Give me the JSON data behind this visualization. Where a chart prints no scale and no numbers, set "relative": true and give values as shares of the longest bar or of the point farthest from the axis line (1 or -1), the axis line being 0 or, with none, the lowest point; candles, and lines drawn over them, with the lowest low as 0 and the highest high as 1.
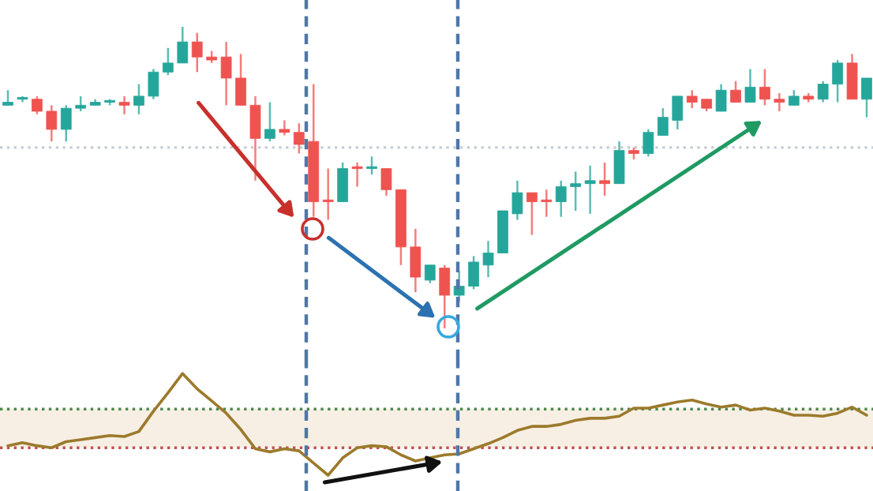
{
  "chart_data": [
    {
      "type": "candlestick",
      "relative": true,
      "categories": [
        null,
        null,
        null,
        null,
        null,
        null,
        null,
        null,
        null,
        null,
        null,
        null,
        null,
        null,
        null,
        null,
        null,
        null,
        null,
        null,
        null,
        null,
        null,
        null,
        null,
        null,
        null,
        null,
        null,
        null,
        null,
        null,
        null,
        null,
        null,
        null,
        null,
        null,
        null,
        null,
        null,
        null,
        null,
        null,
        null,
        null,
        null,
        null,
        null,
        null,
        null,
        null,
        null,
        null,
        null,
        null,
        null,
        null,
        null,
        null
      ],
      "ohlc": [
        [
          0.74,
          0.79,
          0.74,
          0.75
        ],
        [
          0.76,
          0.77,
          0.75,
          0.76
        ],
        [
          0.76,
          0.77,
          0.71,
          0.72
        ],
        [
          0.72,
          0.74,
          0.62,
          0.66
        ],
        [
          0.66,
          0.74,
          0.62,
          0.73
        ],
        [
          0.73,
          0.77,
          0.72,
          0.74
        ],
        [
          0.74,
          0.76,
          0.74,
          0.75
        ],
        [
          0.75,
          0.76,
          0.74,
          0.75
        ],
        [
          0.75,
          0.77,
          0.71,
          0.74
        ],
        [
          0.74,
          0.81,
          0.71,
          0.77
        ],
        [
          0.77,
          0.86,
          0.76,
          0.85
        ],
        [
          0.85,
          0.93,
          0.84,
          0.88
        ],
        [
          0.88,
          1.0,
          0.88,
          0.95
        ],
        [
          0.95,
          0.98,
          0.85,
          0.9
        ],
        [
          0.9,
          0.92,
          0.88,
          0.89
        ],
        [
          0.9,
          0.95,
          0.74,
          0.83
        ],
        [
          0.83,
          0.91,
          0.74,
          0.74
        ],
        [
          0.74,
          0.77,
          0.49,
          0.63
        ],
        [
          0.63,
          0.75,
          0.62,
          0.66
        ],
        [
          0.66,
          0.69,
          0.64,
          0.65
        ],
        [
          0.65,
          0.68,
          0.58,
          0.61
        ],
        [
          0.62,
          0.81,
          0.37,
          0.42
        ],
        [
          0.42,
          0.53,
          0.36,
          0.42
        ],
        [
          0.42,
          0.55,
          0.42,
          0.53
        ],
        [
          0.53,
          0.55,
          0.47,
          0.53
        ],
        [
          0.53,
          0.57,
          0.51,
          0.53
        ],
        [
          0.53,
          0.53,
          0.44,
          0.46
        ],
        [
          0.46,
          0.46,
          0.21,
          0.27
        ],
        [
          0.27,
          0.33,
          0.12,
          0.17
        ],
        [
          0.16,
          0.21,
          0.15,
          0.21
        ],
        [
          0.2,
          0.21,
          0.0,
          0.11
        ],
        [
          0.11,
          0.19,
          0.09,
          0.14
        ],
        [
          0.14,
          0.24,
          0.13,
          0.22
        ],
        [
          0.21,
          0.29,
          0.17,
          0.25
        ],
        [
          0.25,
          0.39,
          0.25,
          0.39
        ],
        [
          0.38,
          0.49,
          0.36,
          0.45
        ],
        [
          0.45,
          0.45,
          0.31,
          0.42
        ],
        [
          0.42,
          0.46,
          0.37,
          0.42
        ],
        [
          0.42,
          0.49,
          0.37,
          0.47
        ],
        [
          0.47,
          0.52,
          0.39,
          0.48
        ],
        [
          0.48,
          0.54,
          0.38,
          0.49
        ],
        [
          0.49,
          0.55,
          0.44,
          0.48
        ],
        [
          0.48,
          0.62,
          0.48,
          0.59
        ],
        [
          0.59,
          0.6,
          0.56,
          0.58
        ],
        [
          0.58,
          0.66,
          0.57,
          0.65
        ],
        [
          0.64,
          0.73,
          0.64,
          0.7
        ],
        [
          0.69,
          0.77,
          0.66,
          0.77
        ],
        [
          0.77,
          0.79,
          0.73,
          0.75
        ],
        [
          0.76,
          0.76,
          0.72,
          0.73
        ],
        [
          0.72,
          0.81,
          0.72,
          0.79
        ],
        [
          0.79,
          0.82,
          0.75,
          0.75
        ],
        [
          0.75,
          0.86,
          0.75,
          0.8
        ],
        [
          0.8,
          0.86,
          0.74,
          0.76
        ],
        [
          0.76,
          0.78,
          0.72,
          0.75
        ],
        [
          0.74,
          0.79,
          0.74,
          0.77
        ],
        [
          0.77,
          0.78,
          0.75,
          0.76
        ],
        [
          0.76,
          0.82,
          0.75,
          0.81
        ],
        [
          0.81,
          0.89,
          0.75,
          0.88
        ],
        [
          0.88,
          0.91,
          0.76,
          0.76
        ],
        [
          0.76,
          0.83,
          0.7,
          0.83
        ]
      ],
      "colors": [
        "#26a69a",
        "#26a69a",
        "#ef5350",
        "#ef5350",
        "#26a69a",
        "#26a69a",
        "#26a69a",
        "#26a69a",
        "#ef5350",
        "#26a69a",
        "#26a69a",
        "#26a69a",
        "#26a69a",
        "#ef5350",
        "#ef5350",
        "#ef5350",
        "#ef5350",
        "#ef5350",
        "#26a69a",
        "#ef5350",
        "#ef5350",
        "#ef5350",
        "#ef5350",
        "#26a69a",
        "#ef5350",
        "#26a69a",
        "#ef5350",
        "#ef5350",
        "#ef5350",
        "#26a69a",
        "#ef5350",
        "#26a69a",
        "#26a69a",
        "#26a69a",
        "#26a69a",
        "#26a69a",
        "#ef5350",
        "#ef5350",
        "#26a69a",
        "#26a69a",
        "#26a69a",
        "#ef5350",
        "#26a69a",
        "#ef5350",
        "#26a69a",
        "#26a69a",
        "#26a69a",
        "#ef5350",
        "#ef5350",
        "#26a69a",
        "#ef5350",
        "#26a69a",
        "#ef5350",
        "#ef5350",
        "#26a69a",
        "#ef5350",
        "#26a69a",
        "#26a69a",
        "#ef5350",
        "#26a69a"
      ],
      "ref_lines": [
        {
          "axis": "y",
          "value": 0.6,
          "color": "#c8cdd2",
          "line_style": "dotted"
        }
      ]
    },
    {
      "type": "line",
      "relative": true,
      "series": [
        {
          "color": "#9c7a2c",
          "values": [
            0.29,
            0.32,
            0.29,
            0.27,
            0.33,
            0.35,
            0.37,
            0.39,
            0.38,
            0.43,
            0.63,
            0.81,
            1.0,
            0.85,
            0.73,
            0.61,
            0.45,
            0.26,
            0.23,
            0.26,
            0.24,
            0.12,
            0.0,
            0.17,
            0.27,
            0.29,
            0.28,
            0.2,
            0.14,
            0.17,
            0.2,
            0.21,
            0.26,
            0.31,
            0.37,
            0.44,
            0.48,
            0.48,
            0.5,
            0.54,
            0.56,
            0.56,
            0.58,
            0.66,
            0.66,
            0.69,
            0.72,
            0.74,
            0.7,
            0.67,
            0.69,
            0.64,
            0.66,
            0.63,
            0.59,
            0.59,
            0.58,
            0.61,
            0.67,
            0.59
          ]
        }
      ],
      "categories": [
        null,
        null,
        null,
        null,
        null,
        null,
        null,
        null,
        null,
        null,
        null,
        null,
        null,
        null,
        null,
        null,
        null,
        null,
        null,
        null,
        null,
        null,
        null,
        null,
        null,
        null,
        null,
        null,
        null,
        null,
        null,
        null,
        null,
        null,
        null,
        null,
        null,
        null,
        null,
        null,
        null,
        null,
        null,
        null,
        null,
        null,
        null,
        null,
        null,
        null,
        null,
        null,
        null,
        null,
        null,
        null,
        null,
        null,
        null,
        null
      ],
      "ref_lines": [
        {
          "axis": "y",
          "value": 0.65,
          "color": "#4a8a4a",
          "line_style": "dotted"
        },
        {
          "axis": "y",
          "value": 0.27,
          "color": "#c05050",
          "line_style": "dotted"
        }
      ],
      "bands": [
        {
          "axis": "y",
          "from": 0.27,
          "to": 0.65,
          "color": "#f7efe4"
        }
      ]
    }
  ]
}
